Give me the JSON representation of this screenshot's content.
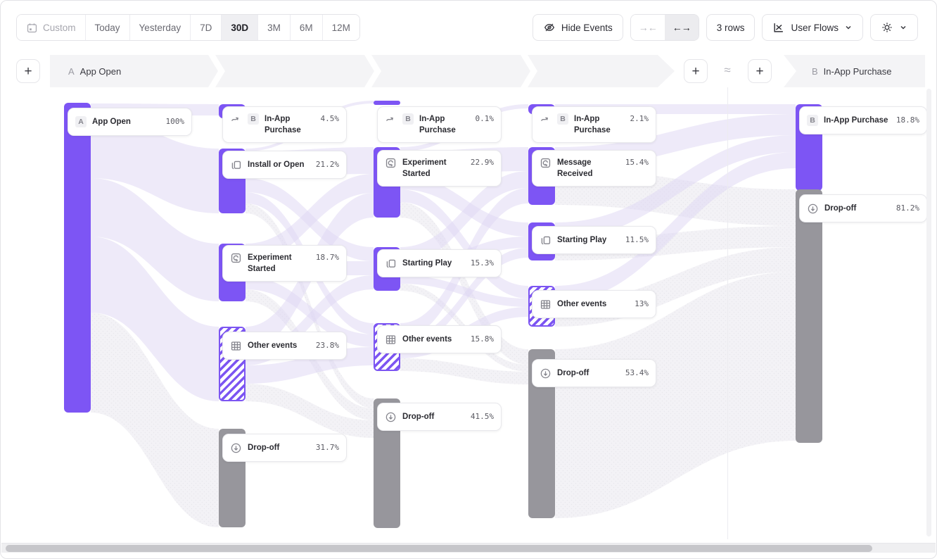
{
  "toolbar": {
    "date_ranges": [
      "Custom",
      "Today",
      "Yesterday",
      "7D",
      "30D",
      "3M",
      "6M",
      "12M"
    ],
    "active_range": "30D",
    "hide_events_label": "Hide Events",
    "collapse_glyph": "→←",
    "expand_glyph": "←→",
    "rows_label": "3 rows",
    "chart_type_label": "User Flows"
  },
  "header": {
    "add_button": "+",
    "approx": "≈",
    "step_a": {
      "letter": "A",
      "label": "App Open"
    },
    "step_b": {
      "letter": "B",
      "label": "In-App Purchase"
    }
  },
  "flow": {
    "columns": [
      {
        "nodes": [
          {
            "label": "App Open",
            "pct": "100%",
            "letter": "A",
            "kind": "start-event"
          }
        ]
      },
      {
        "nodes": [
          {
            "label": "In-App Purchase",
            "pct": "4.5%",
            "letter": "B",
            "kind": "target-event"
          },
          {
            "label": "Install or Open",
            "pct": "21.2%",
            "kind": "event"
          },
          {
            "label": "Experiment Started",
            "pct": "18.7%",
            "kind": "event"
          },
          {
            "label": "Other events",
            "pct": "23.8%",
            "kind": "other-events"
          },
          {
            "label": "Drop-off",
            "pct": "31.7%",
            "kind": "drop-off"
          }
        ]
      },
      {
        "nodes": [
          {
            "label": "In-App Purchase",
            "pct": "0.1%",
            "letter": "B",
            "kind": "target-event"
          },
          {
            "label": "Experiment Started",
            "pct": "22.9%",
            "kind": "event"
          },
          {
            "label": "Starting Play",
            "pct": "15.3%",
            "kind": "event"
          },
          {
            "label": "Other events",
            "pct": "15.8%",
            "kind": "other-events"
          },
          {
            "label": "Drop-off",
            "pct": "41.5%",
            "kind": "drop-off"
          }
        ]
      },
      {
        "nodes": [
          {
            "label": "In-App Purchase",
            "pct": "2.1%",
            "letter": "B",
            "kind": "target-event"
          },
          {
            "label": "Message Received",
            "pct": "15.4%",
            "kind": "event"
          },
          {
            "label": "Starting Play",
            "pct": "11.5%",
            "kind": "event"
          },
          {
            "label": "Other events",
            "pct": "13%",
            "kind": "other-events"
          },
          {
            "label": "Drop-off",
            "pct": "53.4%",
            "kind": "drop-off"
          }
        ]
      },
      {
        "nodes": [
          {
            "label": "In-App Purchase",
            "pct": "18.8%",
            "letter": "B",
            "kind": "target-event"
          },
          {
            "label": "Drop-off",
            "pct": "81.2%",
            "kind": "drop-off"
          }
        ]
      }
    ]
  },
  "colors": {
    "accent_purple": "#7d55f4",
    "dropoff_gray": "#97969c",
    "ribbon_lavender": "#ddd5f4",
    "ribbon_gray": "#f1f0f4",
    "band_gray": "#f4f4f6"
  }
}
